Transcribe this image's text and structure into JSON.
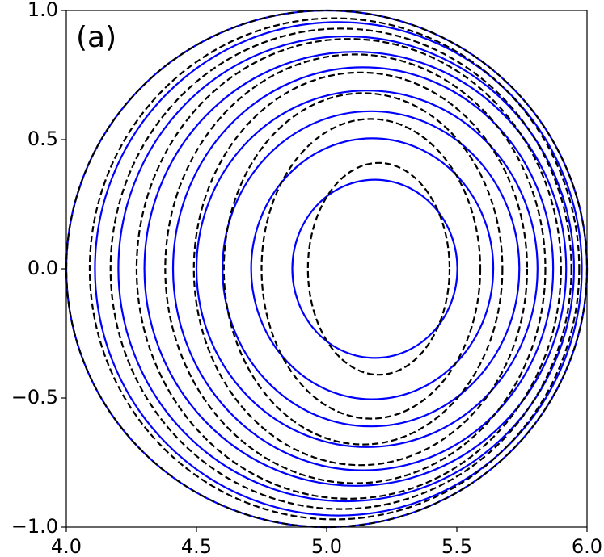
{
  "chart_data": {
    "type": "contour",
    "annotation": "(a)",
    "xlim": [
      4.0,
      6.0
    ],
    "ylim": [
      -1.0,
      1.0
    ],
    "xticks": [
      {
        "value": 4.0,
        "label": "4.0"
      },
      {
        "value": 4.5,
        "label": "4.5"
      },
      {
        "value": 5.0,
        "label": "5.0"
      },
      {
        "value": 5.5,
        "label": "5.5"
      },
      {
        "value": 6.0,
        "label": "6.0"
      }
    ],
    "yticks": [
      {
        "value": -1.0,
        "label": "−1.0"
      },
      {
        "value": -0.5,
        "label": "−0.5"
      },
      {
        "value": 0.0,
        "label": "0.0"
      },
      {
        "value": 0.5,
        "label": "0.5"
      },
      {
        "value": 1.0,
        "label": "1.0"
      }
    ],
    "series": [
      {
        "color": "#0000ff",
        "dashed": false,
        "ellipses": [
          {
            "x0": 5.185,
            "rx": 0.317,
            "ry": 0.345
          },
          {
            "x0": 5.175,
            "rx": 0.465,
            "ry": 0.505
          },
          {
            "x0": 5.17,
            "rx": 0.57,
            "ry": 0.61
          },
          {
            "x0": 5.155,
            "rx": 0.655,
            "ry": 0.69
          },
          {
            "x0": 5.14,
            "rx": 0.73,
            "ry": 0.78
          },
          {
            "x0": 5.11,
            "rx": 0.81,
            "ry": 0.84
          },
          {
            "x0": 5.075,
            "rx": 0.875,
            "ry": 0.9
          },
          {
            "x0": 5.045,
            "rx": 0.935,
            "ry": 0.955
          },
          {
            "x0": 5.0,
            "rx": 1.0,
            "ry": 1.0
          }
        ]
      },
      {
        "color": "#000000",
        "dashed": true,
        "ellipses": [
          {
            "x0": 5.2,
            "rx": 0.272,
            "ry": 0.41
          },
          {
            "x0": 5.17,
            "rx": 0.42,
            "ry": 0.58
          },
          {
            "x0": 5.14,
            "rx": 0.535,
            "ry": 0.68
          },
          {
            "x0": 5.13,
            "rx": 0.64,
            "ry": 0.76
          },
          {
            "x0": 5.11,
            "rx": 0.73,
            "ry": 0.83
          },
          {
            "x0": 5.085,
            "rx": 0.815,
            "ry": 0.89
          },
          {
            "x0": 5.055,
            "rx": 0.885,
            "ry": 0.93
          },
          {
            "x0": 5.03,
            "rx": 0.94,
            "ry": 0.97
          },
          {
            "x0": 5.0,
            "rx": 1.0,
            "ry": 1.0
          }
        ]
      }
    ]
  }
}
